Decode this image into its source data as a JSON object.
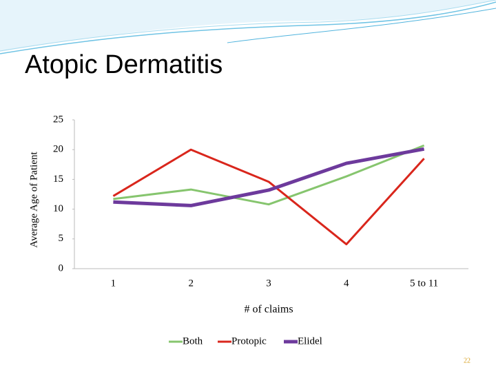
{
  "chart_data": {
    "type": "line",
    "title": "Atopic Dermatitis",
    "x_label": "# of claims",
    "y_label": "Average Age of Patient",
    "categories": [
      "1",
      "2",
      "3",
      "4",
      "5 to 11"
    ],
    "series": [
      {
        "name": "Both",
        "color": "#86c56e",
        "values": [
          11.7,
          13.3,
          10.8,
          15.5,
          20.7
        ]
      },
      {
        "name": "Protopic",
        "color": "#d9261c",
        "values": [
          12.2,
          20.0,
          14.6,
          4.1,
          18.5
        ]
      },
      {
        "name": "Elidel",
        "color": "#6d3a9c",
        "values": [
          11.2,
          10.6,
          13.2,
          17.7,
          20.1
        ]
      }
    ],
    "ylim": [
      0,
      25
    ],
    "yticks": [
      0,
      5,
      10,
      15,
      20,
      25
    ],
    "grid": false,
    "legend": "bottom"
  },
  "slide_number": "22"
}
